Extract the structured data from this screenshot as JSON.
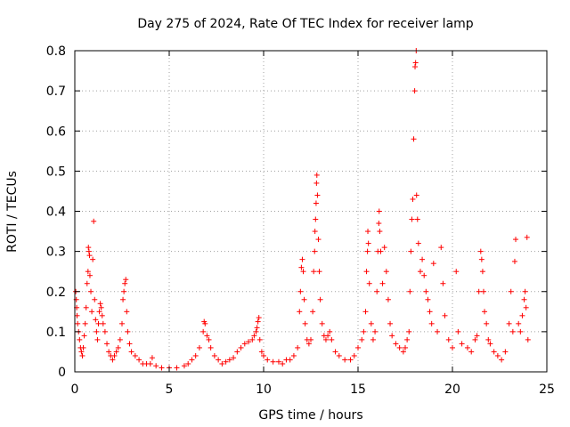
{
  "chart_data": {
    "type": "scatter",
    "title": "Day 275 of 2024, Rate Of TEC Index for receiver lamp",
    "xlabel": "GPS time / hours",
    "ylabel": "ROTI / TECUs",
    "xlim": [
      0,
      25
    ],
    "ylim": [
      0,
      0.8
    ],
    "xticks": [
      0,
      5,
      10,
      15,
      20,
      25
    ],
    "yticks": [
      0,
      0.1,
      0.2,
      0.3,
      0.4,
      0.5,
      0.6,
      0.7,
      0.8
    ],
    "xtick_labels": [
      "0",
      "5",
      "10",
      "15",
      "20",
      "25"
    ],
    "ytick_labels": [
      "0",
      "0.1",
      "0.2",
      "0.3",
      "0.4",
      "0.5",
      "0.6",
      "0.7",
      "0.8"
    ],
    "grid": true,
    "marker": "+",
    "color": "#ff0000",
    "series": [
      {
        "name": "ROTI",
        "points": [
          [
            0.05,
            0.2
          ],
          [
            0.08,
            0.18
          ],
          [
            0.1,
            0.16
          ],
          [
            0.12,
            0.14
          ],
          [
            0.15,
            0.12
          ],
          [
            0.2,
            0.1
          ],
          [
            0.25,
            0.08
          ],
          [
            0.3,
            0.06
          ],
          [
            0.35,
            0.05
          ],
          [
            0.4,
            0.04
          ],
          [
            0.45,
            0.06
          ],
          [
            0.5,
            0.09
          ],
          [
            0.55,
            0.12
          ],
          [
            0.6,
            0.16
          ],
          [
            0.65,
            0.22
          ],
          [
            0.7,
            0.25
          ],
          [
            0.72,
            0.31
          ],
          [
            0.75,
            0.3
          ],
          [
            0.78,
            0.29
          ],
          [
            0.8,
            0.24
          ],
          [
            0.85,
            0.2
          ],
          [
            0.9,
            0.15
          ],
          [
            0.95,
            0.28
          ],
          [
            1.0,
            0.375
          ],
          [
            1.05,
            0.18
          ],
          [
            1.1,
            0.13
          ],
          [
            1.15,
            0.1
          ],
          [
            1.2,
            0.08
          ],
          [
            1.25,
            0.12
          ],
          [
            1.3,
            0.15
          ],
          [
            1.35,
            0.17
          ],
          [
            1.4,
            0.16
          ],
          [
            1.45,
            0.14
          ],
          [
            1.5,
            0.12
          ],
          [
            1.6,
            0.1
          ],
          [
            1.7,
            0.07
          ],
          [
            1.8,
            0.05
          ],
          [
            1.9,
            0.04
          ],
          [
            2.0,
            0.03
          ],
          [
            2.1,
            0.04
          ],
          [
            2.2,
            0.05
          ],
          [
            2.3,
            0.06
          ],
          [
            2.4,
            0.08
          ],
          [
            2.5,
            0.12
          ],
          [
            2.55,
            0.18
          ],
          [
            2.6,
            0.2
          ],
          [
            2.65,
            0.22
          ],
          [
            2.7,
            0.23
          ],
          [
            2.75,
            0.15
          ],
          [
            2.8,
            0.1
          ],
          [
            2.9,
            0.07
          ],
          [
            3.0,
            0.05
          ],
          [
            3.2,
            0.04
          ],
          [
            3.4,
            0.03
          ],
          [
            3.6,
            0.02
          ],
          [
            3.8,
            0.02
          ],
          [
            4.0,
            0.02
          ],
          [
            4.1,
            0.035
          ],
          [
            4.3,
            0.015
          ],
          [
            4.6,
            0.01
          ],
          [
            5.0,
            0.01
          ],
          [
            5.4,
            0.01
          ],
          [
            5.8,
            0.015
          ],
          [
            6.0,
            0.02
          ],
          [
            6.2,
            0.03
          ],
          [
            6.4,
            0.04
          ],
          [
            6.6,
            0.06
          ],
          [
            6.8,
            0.1
          ],
          [
            6.85,
            0.125
          ],
          [
            6.9,
            0.12
          ],
          [
            7.0,
            0.09
          ],
          [
            7.1,
            0.08
          ],
          [
            7.2,
            0.06
          ],
          [
            7.4,
            0.04
          ],
          [
            7.6,
            0.03
          ],
          [
            7.8,
            0.02
          ],
          [
            8.0,
            0.025
          ],
          [
            8.2,
            0.03
          ],
          [
            8.4,
            0.035
          ],
          [
            8.6,
            0.05
          ],
          [
            8.8,
            0.06
          ],
          [
            9.0,
            0.07
          ],
          [
            9.2,
            0.075
          ],
          [
            9.4,
            0.08
          ],
          [
            9.5,
            0.09
          ],
          [
            9.6,
            0.1
          ],
          [
            9.65,
            0.11
          ],
          [
            9.7,
            0.125
          ],
          [
            9.75,
            0.135
          ],
          [
            9.8,
            0.08
          ],
          [
            9.9,
            0.05
          ],
          [
            10.0,
            0.04
          ],
          [
            10.2,
            0.03
          ],
          [
            10.5,
            0.025
          ],
          [
            10.8,
            0.025
          ],
          [
            11.0,
            0.02
          ],
          [
            11.2,
            0.03
          ],
          [
            11.4,
            0.03
          ],
          [
            11.6,
            0.04
          ],
          [
            11.8,
            0.06
          ],
          [
            11.9,
            0.15
          ],
          [
            11.95,
            0.2
          ],
          [
            12.0,
            0.26
          ],
          [
            12.05,
            0.28
          ],
          [
            12.1,
            0.25
          ],
          [
            12.15,
            0.18
          ],
          [
            12.2,
            0.12
          ],
          [
            12.3,
            0.08
          ],
          [
            12.4,
            0.07
          ],
          [
            12.5,
            0.08
          ],
          [
            12.6,
            0.15
          ],
          [
            12.65,
            0.25
          ],
          [
            12.7,
            0.3
          ],
          [
            12.72,
            0.35
          ],
          [
            12.75,
            0.38
          ],
          [
            12.78,
            0.42
          ],
          [
            12.8,
            0.47
          ],
          [
            12.82,
            0.49
          ],
          [
            12.85,
            0.44
          ],
          [
            12.9,
            0.33
          ],
          [
            12.95,
            0.25
          ],
          [
            13.0,
            0.18
          ],
          [
            13.1,
            0.12
          ],
          [
            13.2,
            0.09
          ],
          [
            13.3,
            0.08
          ],
          [
            13.4,
            0.09
          ],
          [
            13.5,
            0.1
          ],
          [
            13.6,
            0.08
          ],
          [
            13.8,
            0.05
          ],
          [
            14.0,
            0.04
          ],
          [
            14.3,
            0.03
          ],
          [
            14.6,
            0.03
          ],
          [
            14.8,
            0.04
          ],
          [
            15.0,
            0.06
          ],
          [
            15.2,
            0.08
          ],
          [
            15.3,
            0.1
          ],
          [
            15.4,
            0.15
          ],
          [
            15.45,
            0.25
          ],
          [
            15.5,
            0.3
          ],
          [
            15.52,
            0.35
          ],
          [
            15.55,
            0.32
          ],
          [
            15.6,
            0.22
          ],
          [
            15.7,
            0.12
          ],
          [
            15.8,
            0.08
          ],
          [
            15.9,
            0.1
          ],
          [
            16.0,
            0.2
          ],
          [
            16.05,
            0.3
          ],
          [
            16.1,
            0.37
          ],
          [
            16.12,
            0.4
          ],
          [
            16.15,
            0.35
          ],
          [
            16.2,
            0.3
          ],
          [
            16.3,
            0.22
          ],
          [
            16.4,
            0.31
          ],
          [
            16.5,
            0.25
          ],
          [
            16.6,
            0.18
          ],
          [
            16.7,
            0.12
          ],
          [
            16.8,
            0.09
          ],
          [
            17.0,
            0.07
          ],
          [
            17.2,
            0.06
          ],
          [
            17.4,
            0.05
          ],
          [
            17.5,
            0.06
          ],
          [
            17.6,
            0.08
          ],
          [
            17.7,
            0.1
          ],
          [
            17.75,
            0.2
          ],
          [
            17.8,
            0.3
          ],
          [
            17.85,
            0.38
          ],
          [
            17.9,
            0.43
          ],
          [
            17.95,
            0.58
          ],
          [
            18.0,
            0.7
          ],
          [
            18.02,
            0.76
          ],
          [
            18.05,
            0.77
          ],
          [
            18.08,
            0.8
          ],
          [
            18.1,
            0.44
          ],
          [
            18.15,
            0.38
          ],
          [
            18.2,
            0.32
          ],
          [
            18.3,
            0.25
          ],
          [
            18.4,
            0.28
          ],
          [
            18.5,
            0.24
          ],
          [
            18.6,
            0.2
          ],
          [
            18.7,
            0.18
          ],
          [
            18.8,
            0.15
          ],
          [
            18.9,
            0.12
          ],
          [
            19.0,
            0.27
          ],
          [
            19.2,
            0.1
          ],
          [
            19.4,
            0.31
          ],
          [
            19.5,
            0.22
          ],
          [
            19.6,
            0.14
          ],
          [
            19.8,
            0.08
          ],
          [
            20.0,
            0.06
          ],
          [
            20.2,
            0.25
          ],
          [
            20.3,
            0.1
          ],
          [
            20.5,
            0.07
          ],
          [
            20.8,
            0.06
          ],
          [
            21.0,
            0.05
          ],
          [
            21.2,
            0.08
          ],
          [
            21.3,
            0.09
          ],
          [
            21.4,
            0.2
          ],
          [
            21.5,
            0.3
          ],
          [
            21.55,
            0.28
          ],
          [
            21.6,
            0.25
          ],
          [
            21.65,
            0.2
          ],
          [
            21.7,
            0.15
          ],
          [
            21.8,
            0.12
          ],
          [
            21.9,
            0.08
          ],
          [
            22.0,
            0.07
          ],
          [
            22.2,
            0.05
          ],
          [
            22.4,
            0.04
          ],
          [
            22.6,
            0.03
          ],
          [
            22.8,
            0.05
          ],
          [
            23.0,
            0.12
          ],
          [
            23.1,
            0.2
          ],
          [
            23.2,
            0.1
          ],
          [
            23.3,
            0.275
          ],
          [
            23.35,
            0.33
          ],
          [
            23.5,
            0.12
          ],
          [
            23.6,
            0.1
          ],
          [
            23.7,
            0.14
          ],
          [
            23.8,
            0.18
          ],
          [
            23.85,
            0.2
          ],
          [
            23.9,
            0.16
          ],
          [
            23.95,
            0.335
          ],
          [
            24.0,
            0.08
          ]
        ]
      }
    ]
  }
}
